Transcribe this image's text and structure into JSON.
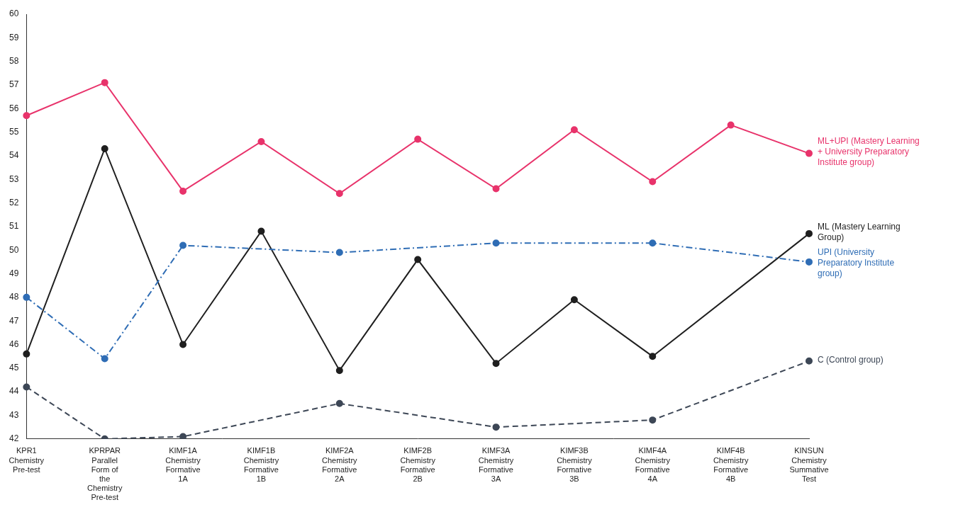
{
  "chart_data": {
    "type": "line",
    "categories": [
      [
        "KPR1",
        "Chemistry",
        "Pre-test"
      ],
      [
        "KPRPAR",
        "Parallel",
        "Form of",
        "the",
        "Chemistry",
        "Pre-test"
      ],
      [
        "KIMF1A",
        "Chemistry",
        "Formative",
        "1A"
      ],
      [
        "KIMF1B",
        "Chemistry",
        "Formative",
        "1B"
      ],
      [
        "KIMF2A",
        "Chemistry",
        "Formative",
        "2A"
      ],
      [
        "KIMF2B",
        "Chemistry",
        "Formative",
        "2B"
      ],
      [
        "KIMF3A",
        "Chemistry",
        "Formative",
        "3A"
      ],
      [
        "KIMF3B",
        "Chemistry",
        "Formative",
        "3B"
      ],
      [
        "KIMF4A",
        "Chemistry",
        "Formative",
        "4A"
      ],
      [
        "KIMF4B",
        "Chemistry",
        "Formative",
        "4B"
      ],
      [
        "KINSUN",
        "Chemistry",
        "Summative",
        "Test"
      ]
    ],
    "series": [
      {
        "name": "C (Control group)",
        "color": "#3d4756",
        "line_style": "dashed",
        "marker": "circle",
        "values": [
          44.2,
          42.0,
          42.1,
          null,
          43.5,
          null,
          42.5,
          null,
          42.8,
          null,
          45.3
        ]
      },
      {
        "name": "UPI (University Preparatory Institute group)",
        "color": "#2f6db5",
        "line_style": "dashdot",
        "marker": "circle",
        "values": [
          48.0,
          45.4,
          50.2,
          null,
          49.9,
          null,
          50.3,
          null,
          50.3,
          null,
          49.5
        ]
      },
      {
        "name": "ML (Mastery Learning Group)",
        "color": "#1f1f1f",
        "line_style": "solid",
        "marker": "circle",
        "values": [
          45.6,
          54.3,
          46.0,
          50.8,
          44.9,
          49.6,
          45.2,
          47.9,
          45.5,
          null,
          50.7
        ]
      },
      {
        "name": "ML+UPI (Mastery Learning + University Preparatory Institute group)",
        "color": "#e8336b",
        "line_style": "solid",
        "marker": "circle",
        "values": [
          55.7,
          57.1,
          52.5,
          54.6,
          52.4,
          54.7,
          52.6,
          55.1,
          52.9,
          55.3,
          54.1
        ]
      }
    ],
    "ylim": [
      42,
      60
    ],
    "yticks": [
      42,
      43,
      44,
      45,
      46,
      47,
      48,
      49,
      50,
      51,
      52,
      53,
      54,
      55,
      56,
      57,
      58,
      59,
      60
    ],
    "grid": false
  }
}
